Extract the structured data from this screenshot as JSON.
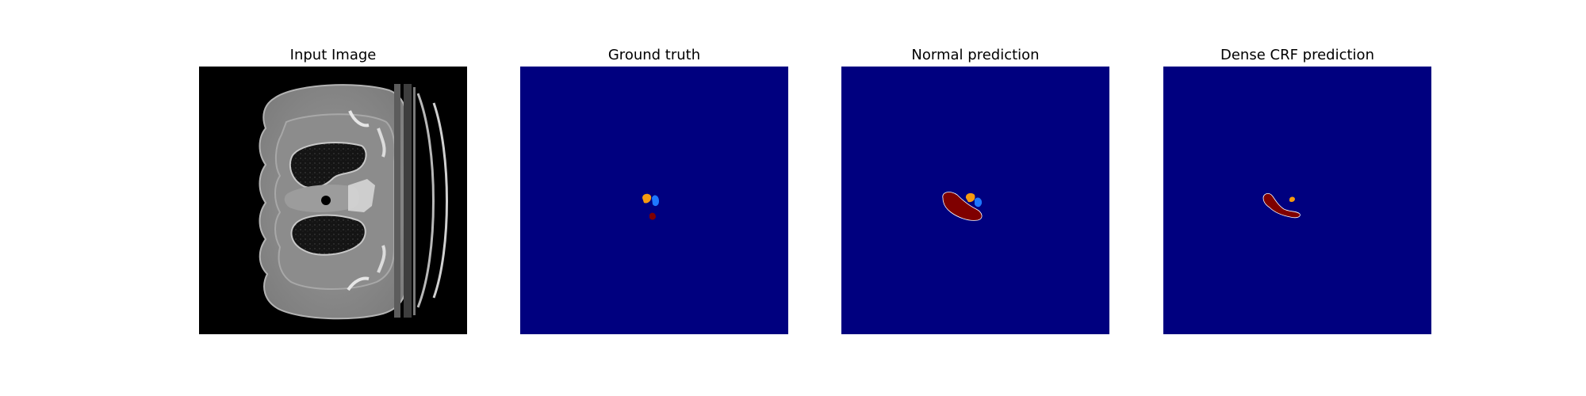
{
  "panels": [
    {
      "title": "Input Image"
    },
    {
      "title": "Ground truth"
    },
    {
      "title": "Normal prediction"
    },
    {
      "title": "Dense CRF prediction"
    }
  ],
  "colors": {
    "background_class": "#00007f",
    "class_orange": "#f59a10",
    "class_blue": "#1e78ff",
    "class_darkred": "#7f0000",
    "ct_background": "#000000"
  }
}
